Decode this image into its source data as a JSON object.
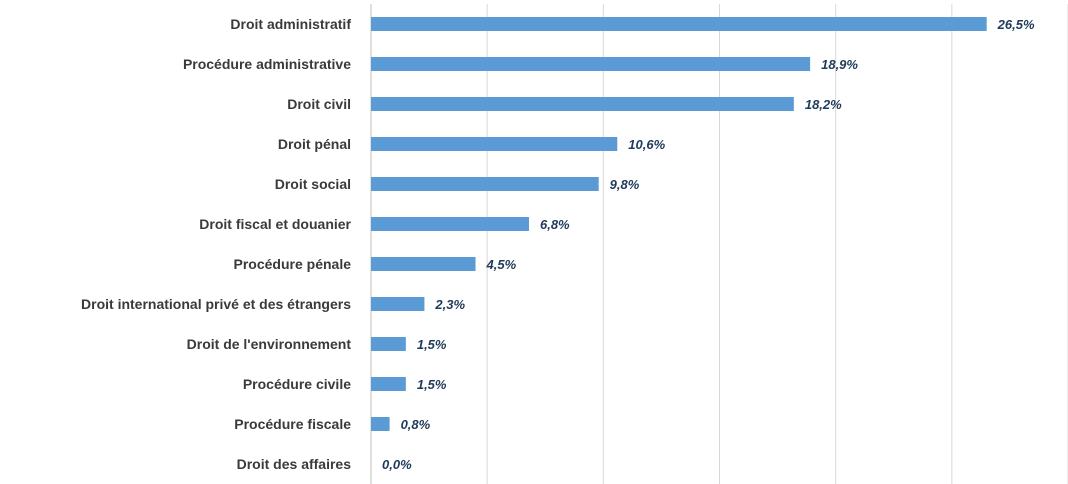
{
  "chart_data": {
    "type": "bar",
    "orientation": "horizontal",
    "categories": [
      "Droit administratif",
      "Procédure administrative",
      "Droit civil",
      "Droit pénal",
      "Droit social",
      "Droit fiscal et douanier",
      "Procédure pénale",
      "Droit international privé et des étrangers",
      "Droit de l'environnement",
      "Procédure civile",
      "Procédure fiscale",
      "Droit des affaires"
    ],
    "values": [
      26.5,
      18.9,
      18.2,
      10.6,
      9.8,
      6.8,
      4.5,
      2.3,
      1.5,
      1.5,
      0.8,
      0.0
    ],
    "value_labels": [
      "26,5%",
      "18,9%",
      "18,2%",
      "10,6%",
      "9,8%",
      "6,8%",
      "4,5%",
      "2,3%",
      "1,5%",
      "1,5%",
      "0,8%",
      "0,0%"
    ],
    "xlim": [
      0,
      30
    ],
    "grid": true,
    "legend": "none",
    "bar_color": "#5b9bd5",
    "label_color": "#1f3a5a"
  }
}
